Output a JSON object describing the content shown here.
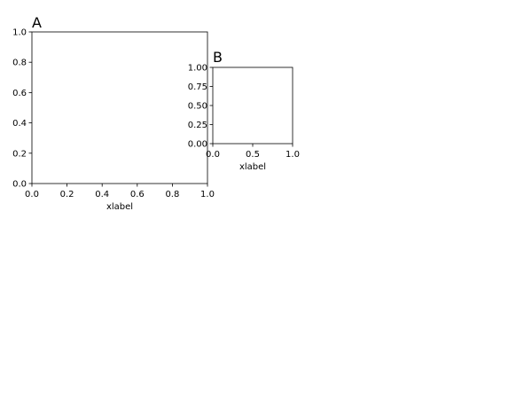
{
  "chart_data": [
    {
      "type": "line",
      "title": "A",
      "title_loc": "left",
      "xlabel": "xlabel",
      "ylabel": "",
      "xlim": [
        0,
        1
      ],
      "ylim": [
        0,
        1
      ],
      "xticks": [
        "0.0",
        "0.2",
        "0.4",
        "0.6",
        "0.8",
        "1.0"
      ],
      "yticks": [
        "0.0",
        "0.2",
        "0.4",
        "0.6",
        "0.8",
        "1.0"
      ],
      "series": [],
      "grid": false
    },
    {
      "type": "line",
      "title": "B",
      "title_loc": "left",
      "xlabel": "xlabel",
      "ylabel": "",
      "xlim": [
        0,
        1
      ],
      "ylim": [
        0,
        1
      ],
      "xticks": [
        "0.0",
        "0.5",
        "1.0"
      ],
      "yticks": [
        "0.00",
        "0.25",
        "0.50",
        "0.75",
        "1.00"
      ],
      "series": [],
      "grid": false
    }
  ]
}
